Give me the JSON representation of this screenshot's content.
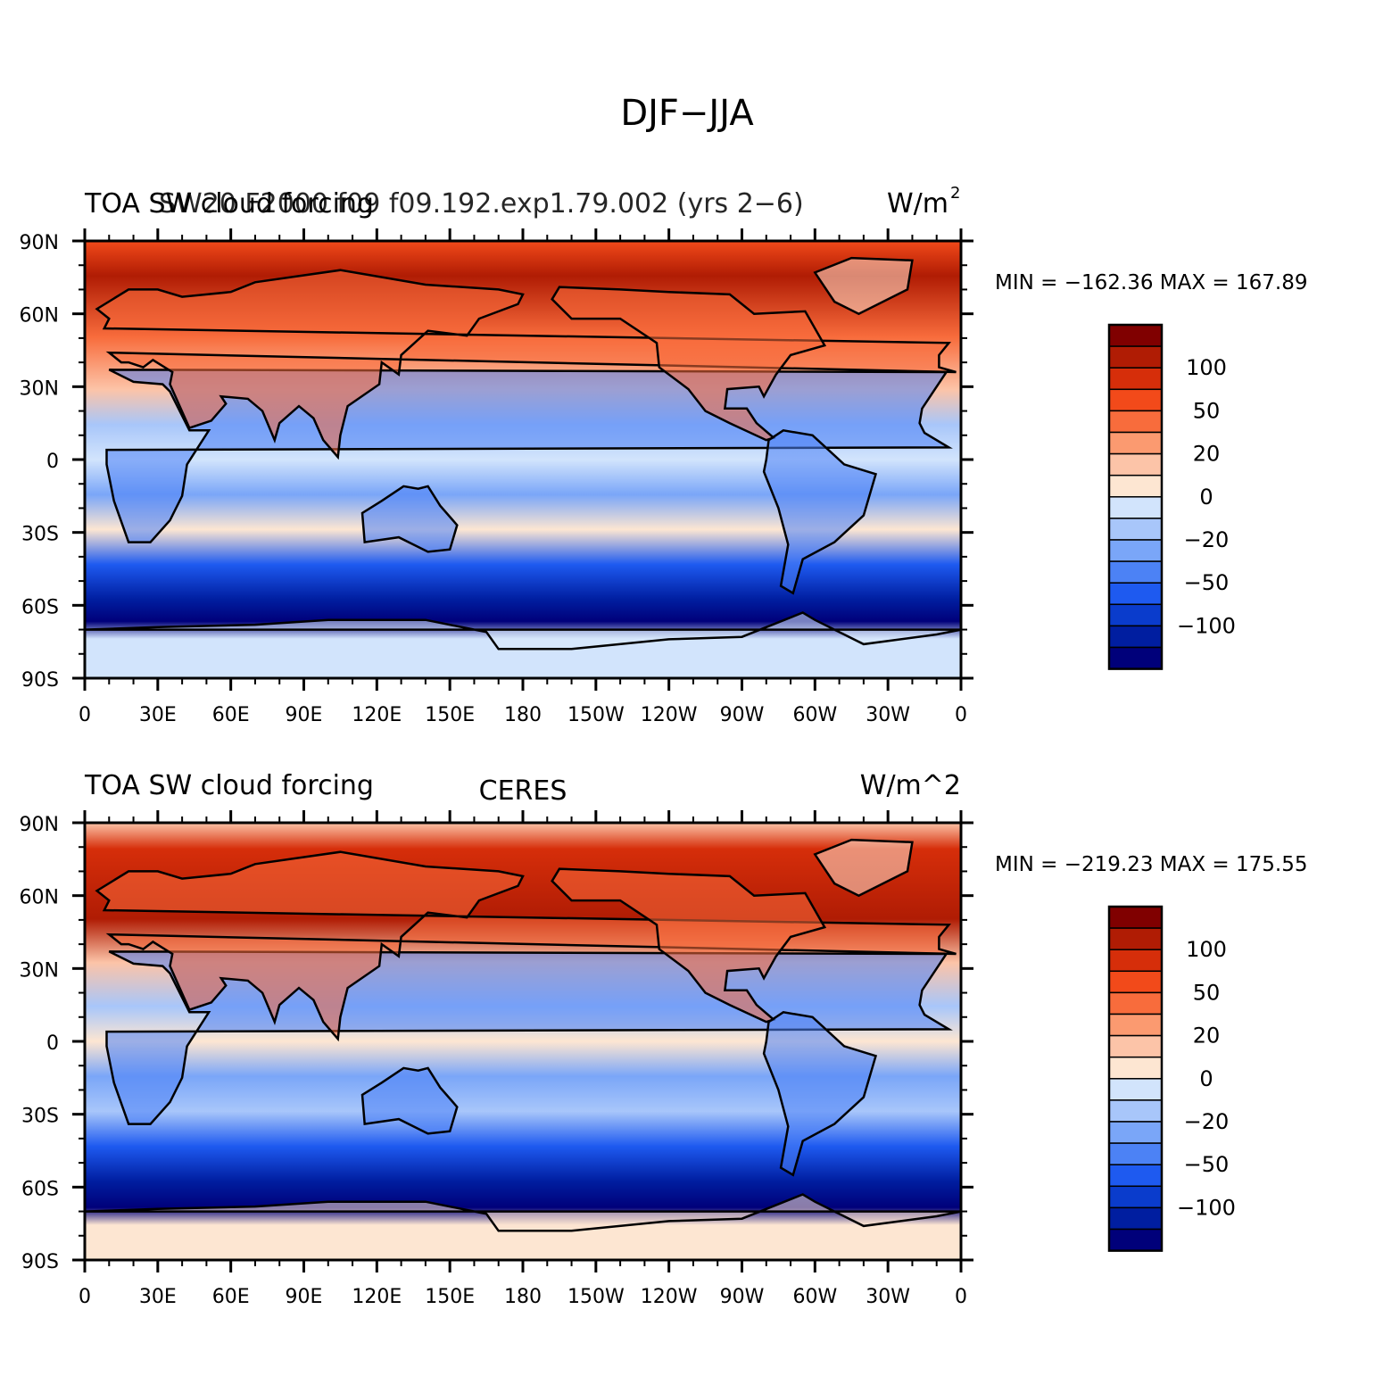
{
  "main_title": "DJF−JJA",
  "panels": [
    {
      "left_label": "TOA SW cloud forcing",
      "center_label": "SW20 F2000 f09 f09.192.exp1.79.002 (yrs 2−6)",
      "right_label": "W/m",
      "right_label_sup": "2",
      "minmax": "MIN = −162.36  MAX = 167.89",
      "colors": {
        "ocean_tropics": "#fbe2d0",
        "polar_band": "#d9e9fb"
      }
    },
    {
      "left_label": "TOA SW cloud forcing",
      "center_label": "CERES",
      "right_label": "W/m^2",
      "right_label_sup": "",
      "minmax": "MIN = −219.23  MAX = 175.55",
      "colors": {
        "ocean_tropics": "#fbe2d0",
        "polar_band": "#fbe2d0"
      }
    }
  ],
  "lat_ticks": [
    "90N",
    "60N",
    "30N",
    "0",
    "30S",
    "60S",
    "90S"
  ],
  "lon_ticks": [
    "0",
    "30E",
    "60E",
    "90E",
    "120E",
    "150E",
    "180",
    "150W",
    "120W",
    "90W",
    "60W",
    "30W",
    "0"
  ],
  "colorbar": {
    "colors": [
      "#00007a",
      "#001ea0",
      "#0a3ccc",
      "#1e5af0",
      "#4c82f5",
      "#7aa6f8",
      "#a8c6fa",
      "#d2e4fc",
      "#fde6d2",
      "#fcc4a8",
      "#fb9a70",
      "#f86c3c",
      "#f24a1a",
      "#d62e0a",
      "#b01c04",
      "#800000"
    ],
    "labels": [
      "−100",
      "−50",
      "−20",
      "0",
      "20",
      "50",
      "100"
    ]
  }
}
